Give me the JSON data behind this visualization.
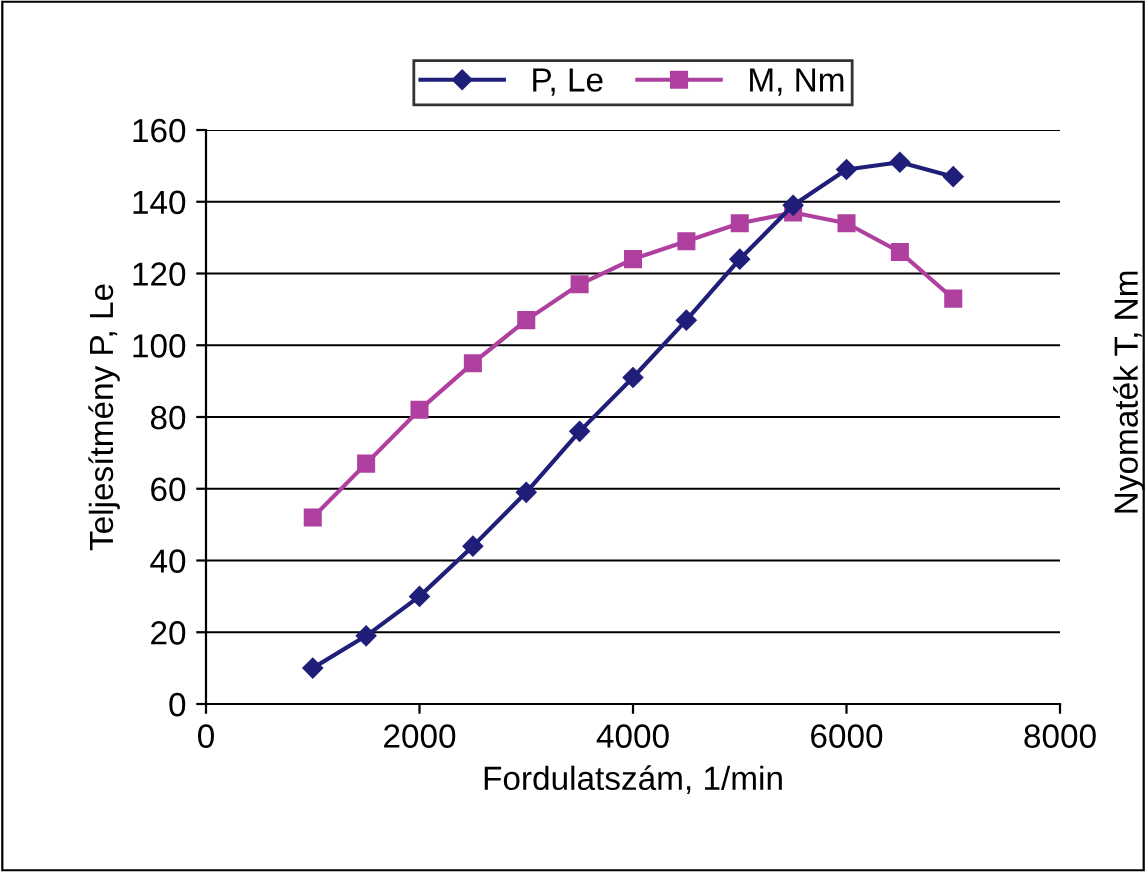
{
  "chart_data": {
    "type": "line",
    "xlabel": "Fordulatszám, 1/min",
    "ylabel": "Teljesítmény P, Le",
    "y2label": "Nyomaték T, Nm",
    "x": [
      1000,
      1500,
      2000,
      2500,
      3000,
      3500,
      4000,
      4500,
      5000,
      5500,
      6000,
      6500,
      7000
    ],
    "series": [
      {
        "name": "P, Le",
        "color": "#1f1f7a",
        "marker": "diamond",
        "values": [
          10,
          19,
          30,
          44,
          59,
          76,
          91,
          107,
          124,
          139,
          149,
          151,
          147
        ]
      },
      {
        "name": "M, Nm",
        "color": "#b0409f",
        "marker": "square",
        "values": [
          52,
          67,
          82,
          95,
          107,
          117,
          124,
          129,
          134,
          137,
          134,
          126,
          113
        ]
      }
    ],
    "xlim": [
      0,
      8000
    ],
    "xticks": [
      0,
      2000,
      4000,
      6000,
      8000
    ],
    "ylim": [
      0,
      160
    ],
    "yticks": [
      0,
      20,
      40,
      60,
      80,
      100,
      120,
      140,
      160
    ],
    "grid": "y",
    "legend": "top",
    "line_style": "solid"
  }
}
